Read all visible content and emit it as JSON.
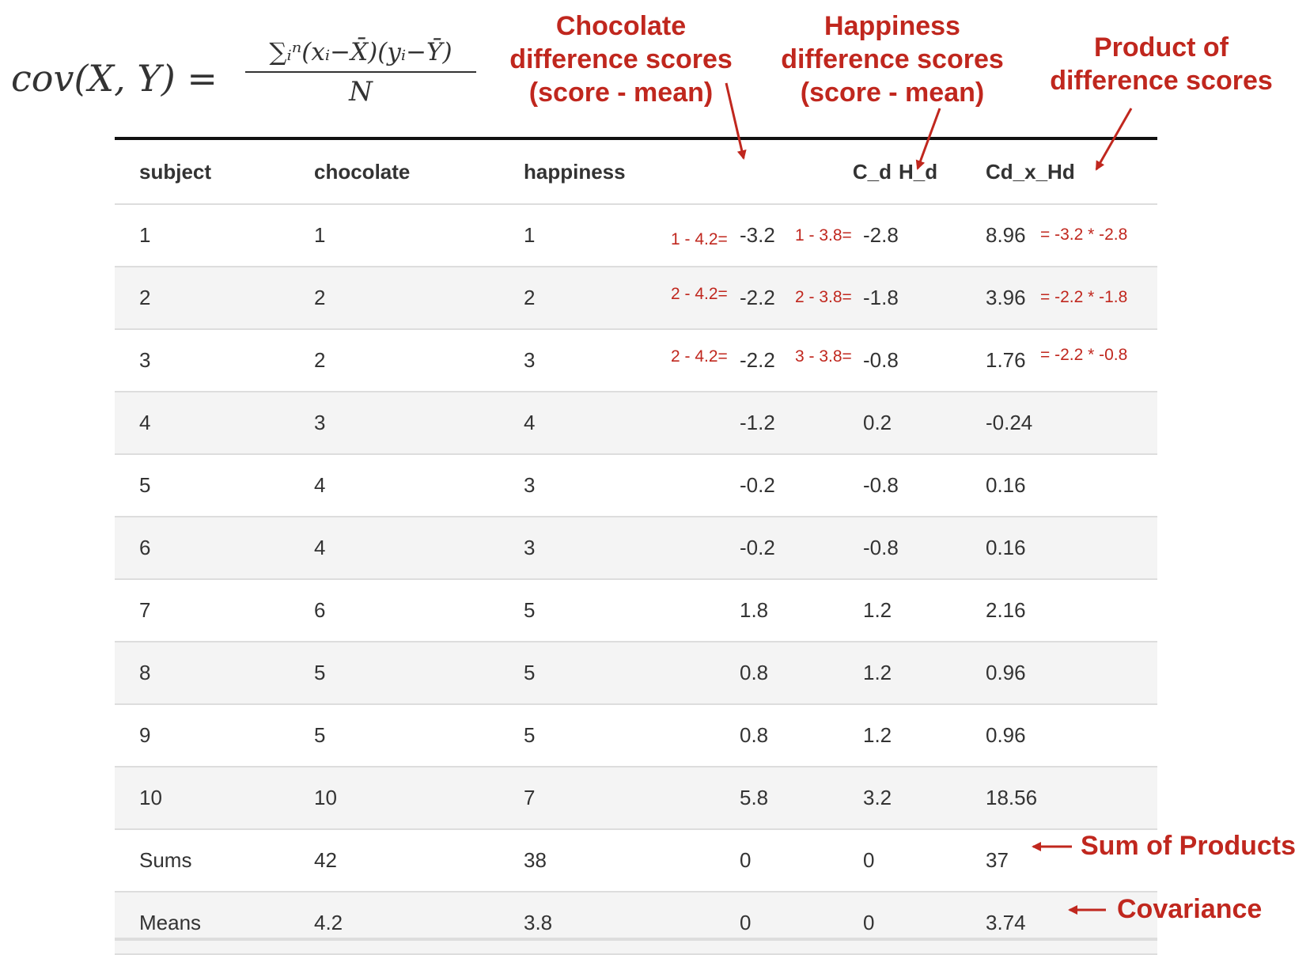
{
  "formula": {
    "lhs": "cov(X, Y) =",
    "numerator": "∑ᵢⁿ(xᵢ−X̄)(yᵢ−Ȳ)",
    "denominator": "N"
  },
  "annotations": {
    "chocolate": [
      "Chocolate",
      "difference scores",
      "(score - mean)"
    ],
    "happiness": [
      "Happiness",
      "difference scores",
      "(score - mean)"
    ],
    "product": [
      "Product of",
      "difference scores"
    ],
    "sum_of_products": "Sum of Products",
    "covariance": "Covariance"
  },
  "accent_color": "#c0271e",
  "table": {
    "headers": [
      "subject",
      "chocolate",
      "happiness",
      "C_d",
      "H_d",
      "Cd_x_Hd"
    ],
    "rows": [
      [
        "1",
        "1",
        "1",
        "-3.2",
        "-2.8",
        "8.96"
      ],
      [
        "2",
        "2",
        "2",
        "-2.2",
        "-1.8",
        "3.96"
      ],
      [
        "3",
        "2",
        "3",
        "-2.2",
        "-0.8",
        "1.76"
      ],
      [
        "4",
        "3",
        "4",
        "-1.2",
        "0.2",
        "-0.24"
      ],
      [
        "5",
        "4",
        "3",
        "-0.2",
        "-0.8",
        "0.16"
      ],
      [
        "6",
        "4",
        "3",
        "-0.2",
        "-0.8",
        "0.16"
      ],
      [
        "7",
        "6",
        "5",
        "1.8",
        "1.2",
        "2.16"
      ],
      [
        "8",
        "5",
        "5",
        "0.8",
        "1.2",
        "0.96"
      ],
      [
        "9",
        "5",
        "5",
        "0.8",
        "1.2",
        "0.96"
      ],
      [
        "10",
        "10",
        "7",
        "5.8",
        "3.2",
        "18.56"
      ],
      [
        "Sums",
        "42",
        "38",
        "0",
        "0",
        "37"
      ],
      [
        "Means",
        "4.2",
        "3.8",
        "0",
        "0",
        "3.74"
      ]
    ],
    "calc_notes": [
      {
        "cd": "1 - 4.2=",
        "hd": "1 - 3.8=",
        "prod": "= -3.2 * -2.8"
      },
      {
        "cd": "2 - 4.2=",
        "hd": "2 - 3.8=",
        "prod": "= -2.2 * -1.8"
      },
      {
        "cd": "2 - 4.2=",
        "hd": "3 - 3.8=",
        "prod": "= -2.2 * -0.8"
      }
    ]
  }
}
